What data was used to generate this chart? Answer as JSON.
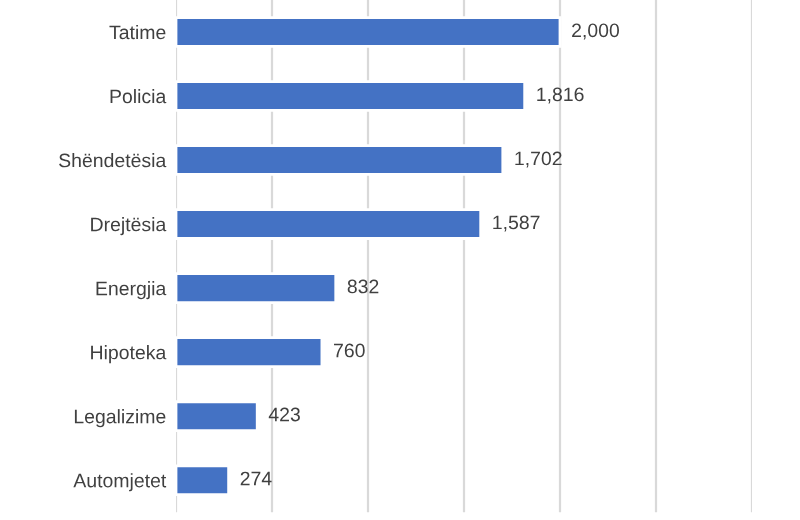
{
  "chart_data": {
    "type": "bar",
    "orientation": "horizontal",
    "categories": [
      "Tatime",
      "Policia",
      "Shëndetësia",
      "Drejtësia",
      "Energjia",
      "Hipoteka",
      "Legalizime",
      "Automjetet"
    ],
    "values": [
      2000,
      1816,
      1702,
      1587,
      832,
      760,
      423,
      274
    ],
    "value_labels": [
      "2,000",
      "1,816",
      "1,702",
      "1,587",
      "832",
      "760",
      "423",
      "274"
    ],
    "color": "#4472c4",
    "xlim": [
      0,
      3000
    ],
    "xticks": [
      {
        "value": 0,
        "label": null
      },
      {
        "value": 500,
        "label": null
      },
      {
        "value": 1000,
        "label": null
      },
      {
        "value": 1500,
        "label": null
      },
      {
        "value": 2000,
        "label": null
      },
      {
        "value": 2500,
        "label": null
      },
      {
        "value": 3000,
        "label": null
      }
    ],
    "grid": "x",
    "tick_labels": "y"
  }
}
